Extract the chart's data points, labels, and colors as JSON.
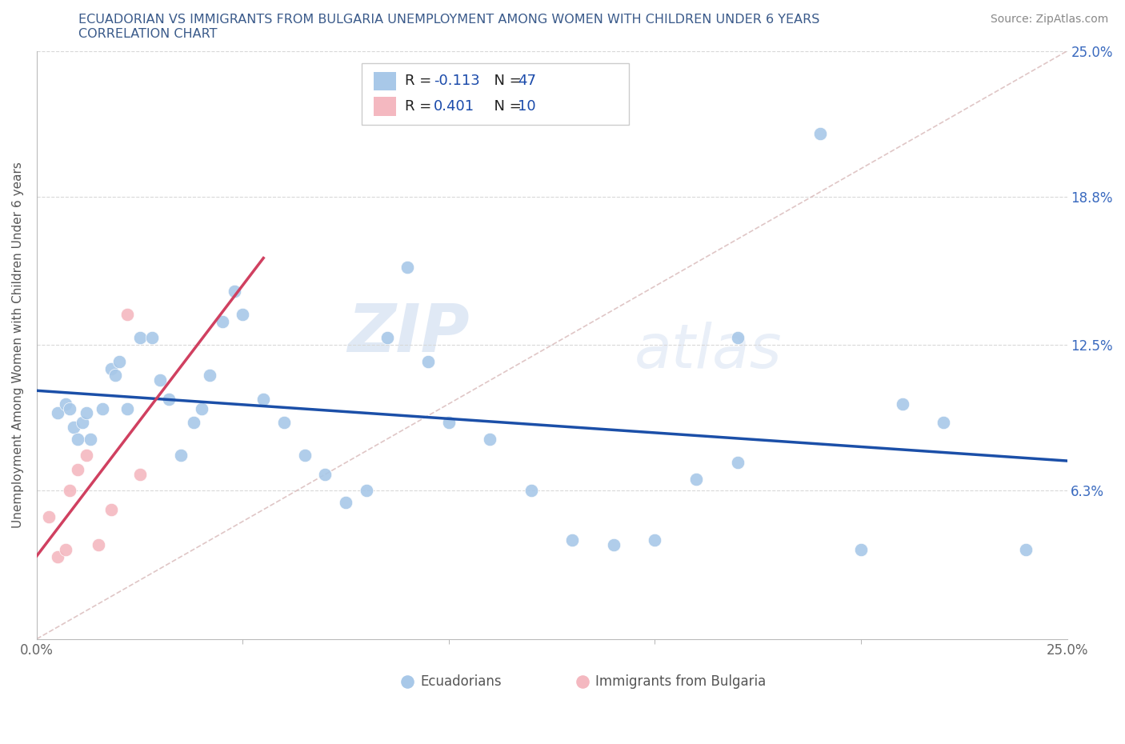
{
  "title_line1": "ECUADORIAN VS IMMIGRANTS FROM BULGARIA UNEMPLOYMENT AMONG WOMEN WITH CHILDREN UNDER 6 YEARS",
  "title_line2": "CORRELATION CHART",
  "source": "Source: ZipAtlas.com",
  "ylabel": "Unemployment Among Women with Children Under 6 years",
  "xlim": [
    0.0,
    0.25
  ],
  "ylim": [
    0.0,
    0.25
  ],
  "ytick_positions": [
    0.063,
    0.125,
    0.188,
    0.25
  ],
  "ytick_labels": [
    "6.3%",
    "12.5%",
    "18.8%",
    "25.0%"
  ],
  "watermark_zip": "ZIP",
  "watermark_atlas": "atlas",
  "blue_color": "#a8c8e8",
  "pink_color": "#f4b8c0",
  "line_blue": "#1b4fa8",
  "line_pink": "#d04060",
  "line_diag_color": "#d8b8b8",
  "background_color": "#ffffff",
  "grid_color": "#d8d8d8",
  "title_color": "#3a5a8a",
  "ecuadorians_x": [
    0.005,
    0.007,
    0.008,
    0.009,
    0.01,
    0.011,
    0.012,
    0.013,
    0.016,
    0.018,
    0.019,
    0.02,
    0.022,
    0.025,
    0.028,
    0.03,
    0.032,
    0.035,
    0.038,
    0.04,
    0.042,
    0.045,
    0.048,
    0.05,
    0.055,
    0.06,
    0.065,
    0.07,
    0.075,
    0.08,
    0.085,
    0.09,
    0.095,
    0.1,
    0.11,
    0.12,
    0.13,
    0.14,
    0.15,
    0.16,
    0.17,
    0.19,
    0.2,
    0.22,
    0.24,
    0.21,
    0.17
  ],
  "ecuadorians_y": [
    0.096,
    0.1,
    0.098,
    0.09,
    0.085,
    0.092,
    0.096,
    0.085,
    0.098,
    0.115,
    0.112,
    0.118,
    0.098,
    0.128,
    0.128,
    0.11,
    0.102,
    0.078,
    0.092,
    0.098,
    0.112,
    0.135,
    0.148,
    0.138,
    0.102,
    0.092,
    0.078,
    0.07,
    0.058,
    0.063,
    0.128,
    0.158,
    0.118,
    0.092,
    0.085,
    0.063,
    0.042,
    0.04,
    0.042,
    0.068,
    0.075,
    0.215,
    0.038,
    0.092,
    0.038,
    0.1,
    0.128
  ],
  "bulgaria_x": [
    0.003,
    0.005,
    0.007,
    0.008,
    0.01,
    0.012,
    0.015,
    0.018,
    0.022,
    0.025
  ],
  "bulgaria_y": [
    0.052,
    0.035,
    0.038,
    0.063,
    0.072,
    0.078,
    0.04,
    0.055,
    0.138,
    0.07
  ],
  "ecu_label": "Ecuadorians",
  "bul_label": "Immigrants from Bulgaria"
}
